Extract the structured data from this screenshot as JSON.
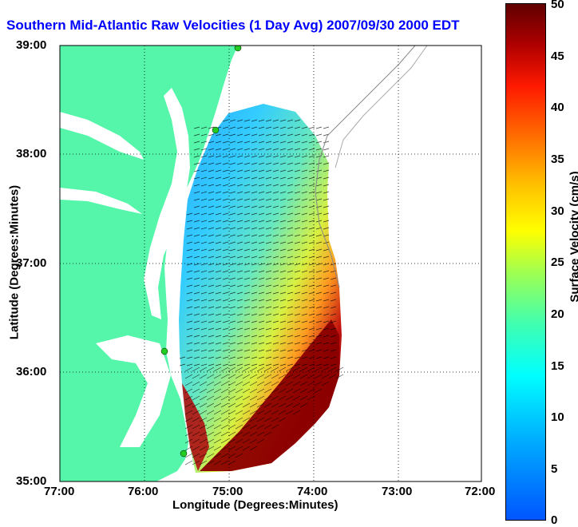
{
  "title": "Southern Mid-Atlantic Raw Velocities (1 Day Avg) 2007/09/30 2000 EDT",
  "xlabel": "Longitude (Degrees:Minutes)",
  "ylabel": "Latitude (Degrees:Minutes)",
  "x_ticks": [
    "77:00",
    "76:00",
    "75:00",
    "74:00",
    "73:00",
    "72:00"
  ],
  "y_ticks": [
    "39:00",
    "38:00",
    "37:00",
    "36:00",
    "35:00"
  ],
  "colorbar": {
    "label": "Surface Velocity (cm/s)",
    "ticks": [
      "50",
      "45",
      "40",
      "35",
      "30",
      "25",
      "20",
      "15",
      "10",
      "5",
      "0"
    ],
    "min": 0,
    "max": 50
  },
  "colors": {
    "land": "#55f5aa",
    "title": "#0000ff",
    "station": "#22cc22"
  }
}
